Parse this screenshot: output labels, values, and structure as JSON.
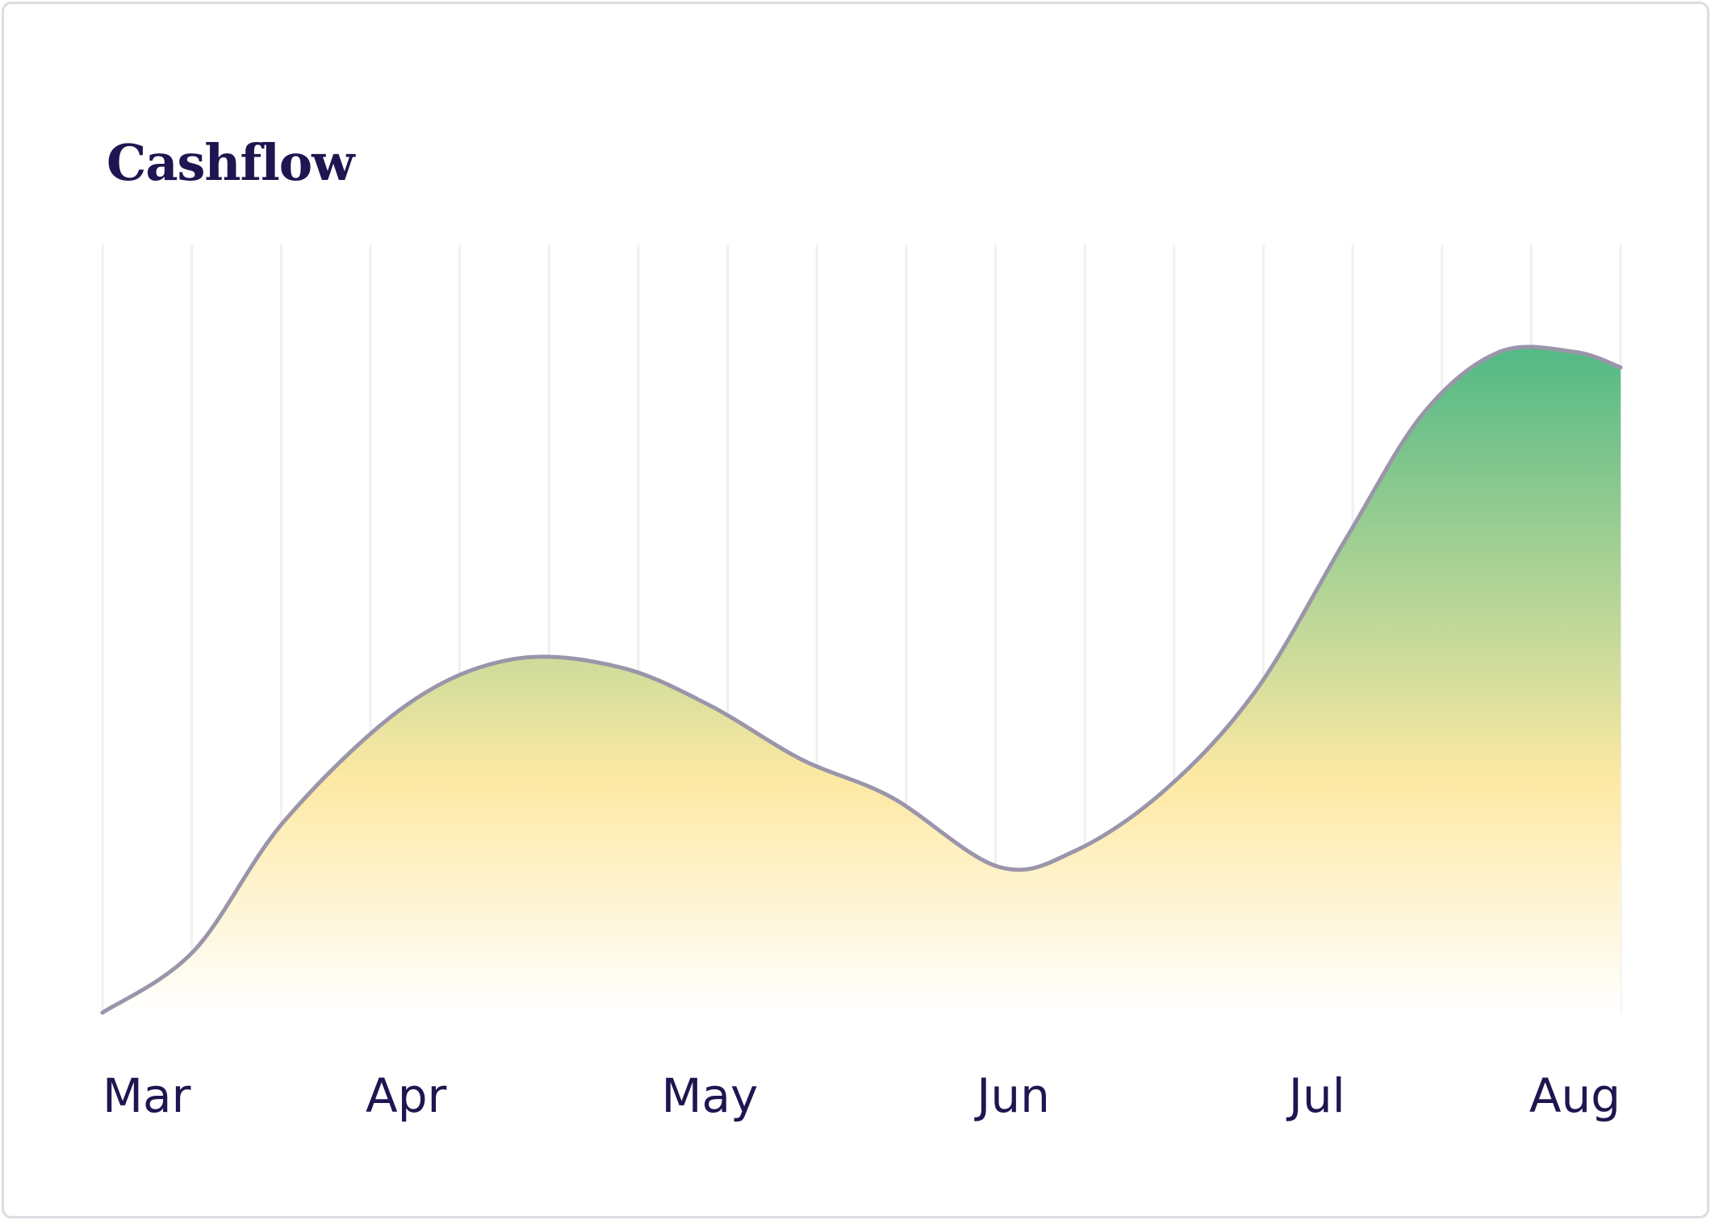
{
  "chart_data": {
    "type": "area",
    "title": "Cashflow",
    "xlabel": "",
    "ylabel": "",
    "categories": [
      "Mar",
      "Apr",
      "May",
      "Jun",
      "Jul",
      "Aug"
    ],
    "grid": "vertical",
    "ylim": [
      0,
      100
    ],
    "series": [
      {
        "x": [
          0,
          0.3,
          0.6,
          1.0,
          1.35,
          1.7,
          2.0,
          2.3,
          2.6,
          2.95,
          3.2,
          3.5,
          3.8,
          4.1,
          4.35,
          4.6,
          4.85,
          5.0
        ],
        "values": [
          0,
          8,
          25,
          40,
          46,
          45,
          40,
          33,
          28,
          19,
          21,
          29,
          42,
          62,
          78,
          86,
          86,
          84
        ]
      }
    ],
    "colors": {
      "line": "#9b95aa",
      "fill_top": "#52b985",
      "fill_middle": "#fde9a3",
      "fill_bottom": "#ffffff",
      "grid": "#f0f0f3",
      "text": "#1e1650"
    }
  }
}
